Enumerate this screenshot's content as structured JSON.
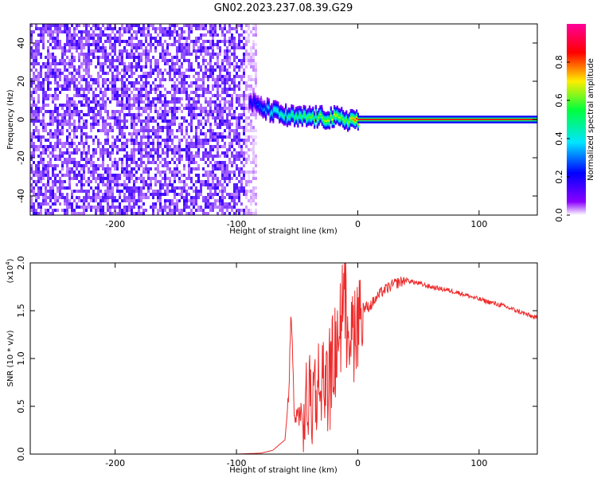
{
  "title": "GN02.2023.237.08.39.G29",
  "chart_data": [
    {
      "type": "heatmap",
      "xlabel": "Height of straight line (km)",
      "ylabel": "Frequency (Hz)",
      "xlim": [
        -270,
        148
      ],
      "ylim": [
        -50,
        50
      ],
      "xticks": [
        -200,
        -100,
        0,
        100
      ],
      "yticks": [
        -40,
        -20,
        0,
        20,
        40
      ],
      "colorbar": {
        "label": "Normalized spectral amplitude",
        "range": [
          0,
          1
        ],
        "ticks": [
          "0.0",
          "0.2",
          "0.4",
          "0.6",
          "0.8"
        ],
        "colormap": [
          "#ffffff",
          "#8a00ff",
          "#0000ff",
          "#00e5ff",
          "#00ff3c",
          "#ffee00",
          "#ff0000",
          "#ff0099"
        ]
      },
      "noise_region": {
        "x_range": [
          -270,
          -83
        ],
        "y_range": [
          -50,
          50
        ],
        "amplitude": 0.15
      },
      "signal_track": {
        "x": [
          -90,
          -80,
          -70,
          -60,
          -50,
          -40,
          -30,
          -20,
          -10,
          0,
          50,
          100,
          148
        ],
        "y": [
          10,
          6,
          4,
          2,
          1,
          1.5,
          1,
          1,
          0,
          0,
          0,
          0,
          0
        ],
        "amplitude": [
          0.2,
          0.3,
          0.45,
          0.5,
          0.55,
          0.6,
          0.65,
          0.7,
          0.6,
          0.9,
          0.95,
          0.95,
          0.95
        ]
      }
    },
    {
      "type": "line",
      "xlabel": "Height of straight line (km)",
      "ylabel": "SNR (10 * v/v)",
      "yscale_label": "(x10",
      "yscale_exp": "4",
      "xlim": [
        -270,
        148
      ],
      "ylim": [
        0,
        2.0
      ],
      "xticks": [
        -200,
        -100,
        0,
        100
      ],
      "yticks": [
        "0.0",
        "0.5",
        "1.0",
        "1.5",
        "2.0"
      ],
      "line_color": "#ee2b2b",
      "series": [
        {
          "x": [
            -270,
            -100,
            -80,
            -70,
            -60,
            -57,
            -55,
            -52,
            -48,
            -45,
            -40,
            -30,
            -20,
            -12,
            -5,
            0,
            10,
            20,
            30,
            40,
            60,
            80,
            100,
            120,
            148
          ],
          "y": [
            0.0,
            0.0,
            0.01,
            0.04,
            0.15,
            0.6,
            1.47,
            0.35,
            0.45,
            0.3,
            0.6,
            0.7,
            0.9,
            1.6,
            1.25,
            1.5,
            1.55,
            1.7,
            1.78,
            1.82,
            1.75,
            1.7,
            1.62,
            1.55,
            1.42
          ]
        }
      ]
    }
  ]
}
